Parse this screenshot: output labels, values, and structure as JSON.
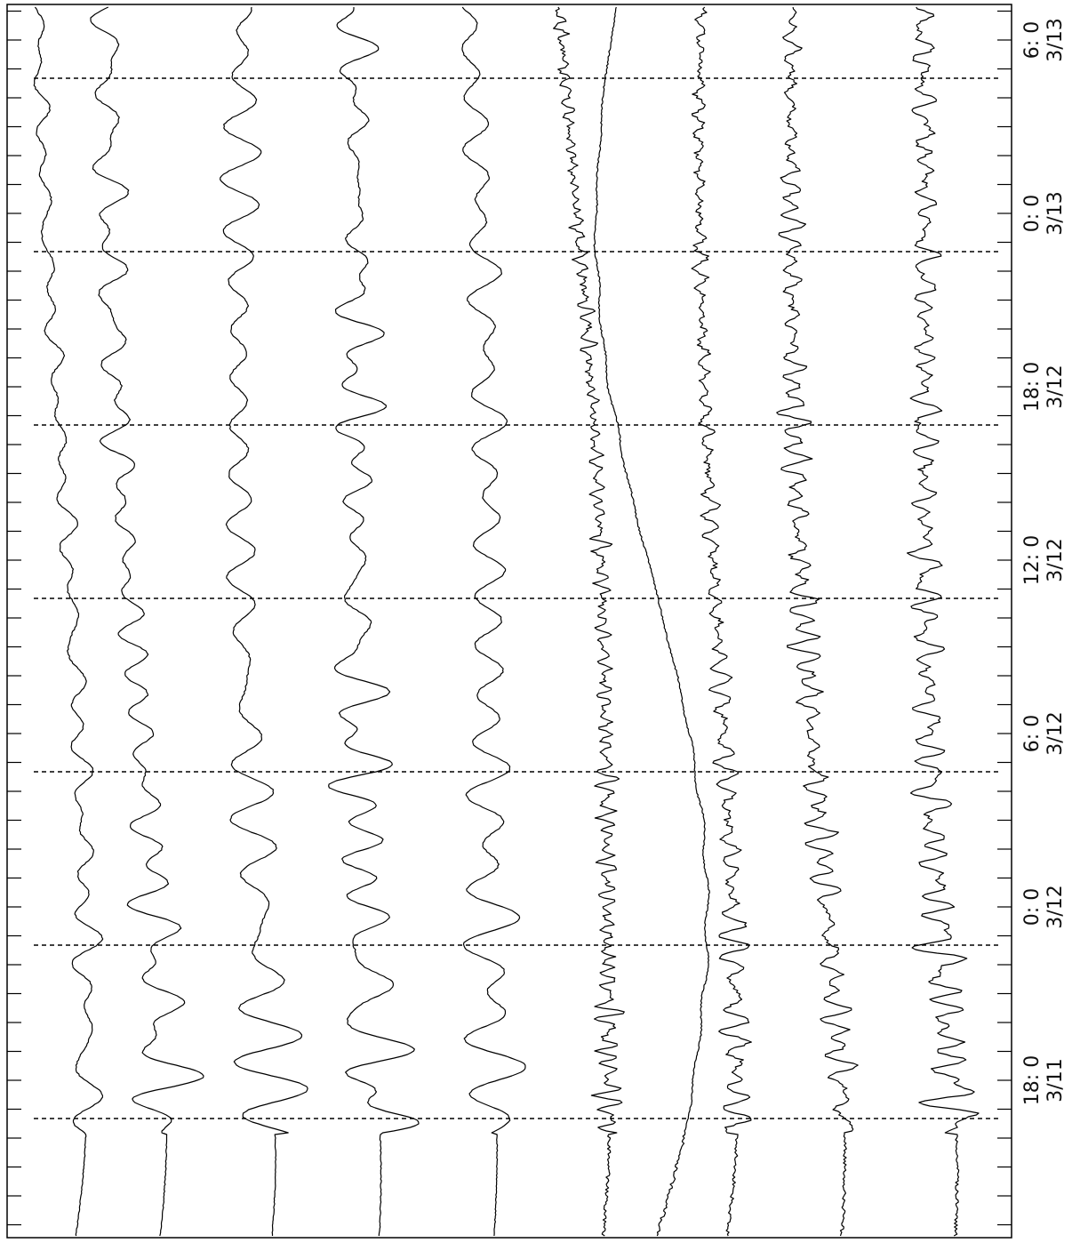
{
  "time_axis": {
    "ticks": [
      {
        "hour": "18: 0",
        "date": "3/11"
      },
      {
        "hour": "0: 0",
        "date": "3/12"
      },
      {
        "hour": "6: 0",
        "date": "3/12"
      },
      {
        "hour": "12: 0",
        "date": "3/12"
      },
      {
        "hour": "18: 0",
        "date": "3/12"
      },
      {
        "hour": "0: 0",
        "date": "3/13"
      },
      {
        "hour": "6: 0",
        "date": "3/13"
      }
    ]
  }
}
